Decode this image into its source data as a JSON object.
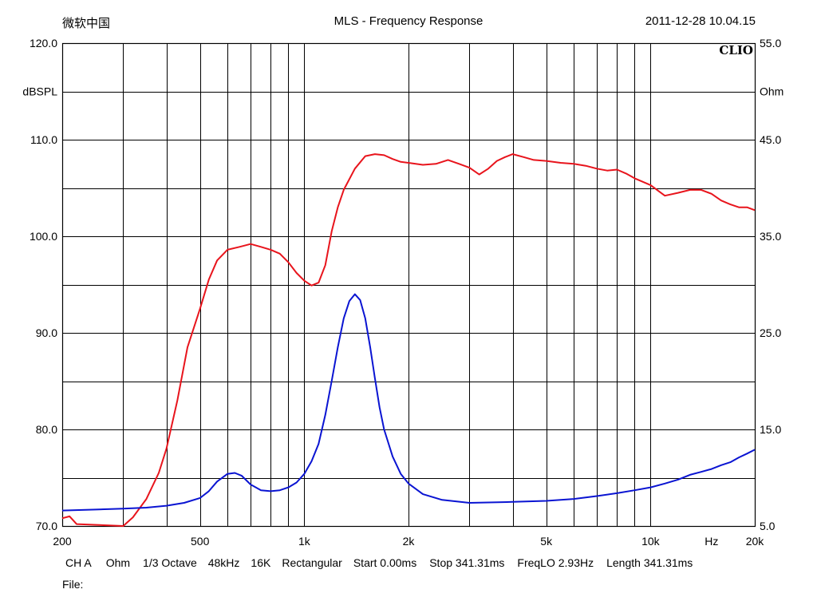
{
  "header": {
    "left_text": "微软中国",
    "title": "MLS - Frequency Response",
    "date": "2011-12-28 10.04.15"
  },
  "footer": {
    "params": [
      "CH A",
      "Ohm",
      "1/3 Octave",
      "48kHz",
      "16K",
      "Rectangular",
      "Start 0.00ms",
      "Stop 341.31ms",
      "FreqLO 2.93Hz",
      "Length 341.31ms"
    ],
    "file_label": "File:"
  },
  "chart_data": {
    "type": "line",
    "title": "MLS - Frequency Response",
    "brand": "CLIO",
    "x_scale": "log",
    "xlim": [
      200,
      20000
    ],
    "x_ticks": [
      200,
      500,
      1000,
      2000,
      5000,
      10000,
      20000
    ],
    "x_tick_labels": [
      "200",
      "500",
      "1k",
      "2k",
      "5k",
      "10k",
      "20k"
    ],
    "x_unit_label": "Hz",
    "y_left": {
      "label": "dBSPL",
      "lim": [
        70,
        120
      ],
      "ticks": [
        70,
        80,
        90,
        100,
        110,
        120
      ],
      "tick_labels": [
        "70.0",
        "80.0",
        "90.0",
        "100.0",
        "110.0",
        "120.0"
      ]
    },
    "y_right": {
      "label": "Ohm",
      "lim": [
        5,
        55
      ],
      "ticks": [
        5,
        15,
        25,
        35,
        45,
        55
      ],
      "tick_labels": [
        "5.0",
        "15.0",
        "25.0",
        "35.0",
        "45.0",
        "55.0"
      ]
    },
    "grid": true,
    "series": [
      {
        "axis": "left",
        "color": "#e8141c",
        "points": [
          [
            200,
            70.8
          ],
          [
            210,
            71.0
          ],
          [
            220,
            70.2
          ],
          [
            300,
            70.0
          ],
          [
            320,
            70.9
          ],
          [
            350,
            72.8
          ],
          [
            380,
            75.5
          ],
          [
            400,
            78.0
          ],
          [
            430,
            83.0
          ],
          [
            460,
            88.5
          ],
          [
            500,
            92.5
          ],
          [
            530,
            95.5
          ],
          [
            560,
            97.5
          ],
          [
            600,
            98.6
          ],
          [
            650,
            98.9
          ],
          [
            700,
            99.2
          ],
          [
            750,
            98.9
          ],
          [
            800,
            98.6
          ],
          [
            850,
            98.2
          ],
          [
            900,
            97.3
          ],
          [
            950,
            96.2
          ],
          [
            1000,
            95.4
          ],
          [
            1050,
            94.9
          ],
          [
            1100,
            95.2
          ],
          [
            1150,
            97.0
          ],
          [
            1200,
            100.5
          ],
          [
            1250,
            103.0
          ],
          [
            1300,
            104.8
          ],
          [
            1400,
            107.0
          ],
          [
            1500,
            108.3
          ],
          [
            1600,
            108.5
          ],
          [
            1700,
            108.4
          ],
          [
            1800,
            108.0
          ],
          [
            1900,
            107.7
          ],
          [
            2000,
            107.6
          ],
          [
            2200,
            107.4
          ],
          [
            2400,
            107.5
          ],
          [
            2600,
            107.9
          ],
          [
            2800,
            107.5
          ],
          [
            3000,
            107.1
          ],
          [
            3200,
            106.4
          ],
          [
            3400,
            107.0
          ],
          [
            3600,
            107.8
          ],
          [
            3800,
            108.2
          ],
          [
            4000,
            108.5
          ],
          [
            4300,
            108.2
          ],
          [
            4600,
            107.9
          ],
          [
            5000,
            107.8
          ],
          [
            5500,
            107.6
          ],
          [
            6000,
            107.5
          ],
          [
            6500,
            107.3
          ],
          [
            7000,
            107.0
          ],
          [
            7500,
            106.8
          ],
          [
            8000,
            106.9
          ],
          [
            8500,
            106.5
          ],
          [
            9000,
            106.0
          ],
          [
            10000,
            105.3
          ],
          [
            11000,
            104.2
          ],
          [
            12000,
            104.5
          ],
          [
            13000,
            104.8
          ],
          [
            14000,
            104.8
          ],
          [
            15000,
            104.4
          ],
          [
            16000,
            103.7
          ],
          [
            17000,
            103.3
          ],
          [
            18000,
            103.0
          ],
          [
            19000,
            103.0
          ],
          [
            20000,
            102.7
          ]
        ]
      },
      {
        "axis": "right",
        "color": "#0a14d2",
        "points": [
          [
            200,
            6.6
          ],
          [
            250,
            6.7
          ],
          [
            300,
            6.8
          ],
          [
            350,
            6.9
          ],
          [
            400,
            7.1
          ],
          [
            450,
            7.4
          ],
          [
            500,
            7.9
          ],
          [
            530,
            8.6
          ],
          [
            560,
            9.6
          ],
          [
            600,
            10.4
          ],
          [
            630,
            10.5
          ],
          [
            660,
            10.2
          ],
          [
            700,
            9.3
          ],
          [
            750,
            8.7
          ],
          [
            800,
            8.6
          ],
          [
            850,
            8.7
          ],
          [
            900,
            9.0
          ],
          [
            950,
            9.5
          ],
          [
            1000,
            10.4
          ],
          [
            1050,
            11.7
          ],
          [
            1100,
            13.5
          ],
          [
            1150,
            16.5
          ],
          [
            1200,
            20.0
          ],
          [
            1250,
            23.5
          ],
          [
            1300,
            26.5
          ],
          [
            1350,
            28.3
          ],
          [
            1400,
            29.0
          ],
          [
            1450,
            28.4
          ],
          [
            1500,
            26.5
          ],
          [
            1550,
            23.5
          ],
          [
            1600,
            20.3
          ],
          [
            1650,
            17.3
          ],
          [
            1700,
            15.0
          ],
          [
            1800,
            12.2
          ],
          [
            1900,
            10.4
          ],
          [
            2000,
            9.4
          ],
          [
            2200,
            8.3
          ],
          [
            2500,
            7.7
          ],
          [
            3000,
            7.4
          ],
          [
            4000,
            7.5
          ],
          [
            5000,
            7.6
          ],
          [
            6000,
            7.8
          ],
          [
            7000,
            8.1
          ],
          [
            8000,
            8.4
          ],
          [
            9000,
            8.7
          ],
          [
            10000,
            9.0
          ],
          [
            11000,
            9.4
          ],
          [
            12000,
            9.8
          ],
          [
            13000,
            10.3
          ],
          [
            14000,
            10.6
          ],
          [
            15000,
            10.9
          ],
          [
            16000,
            11.3
          ],
          [
            17000,
            11.6
          ],
          [
            18000,
            12.1
          ],
          [
            19000,
            12.5
          ],
          [
            20000,
            12.9
          ]
        ]
      }
    ]
  }
}
